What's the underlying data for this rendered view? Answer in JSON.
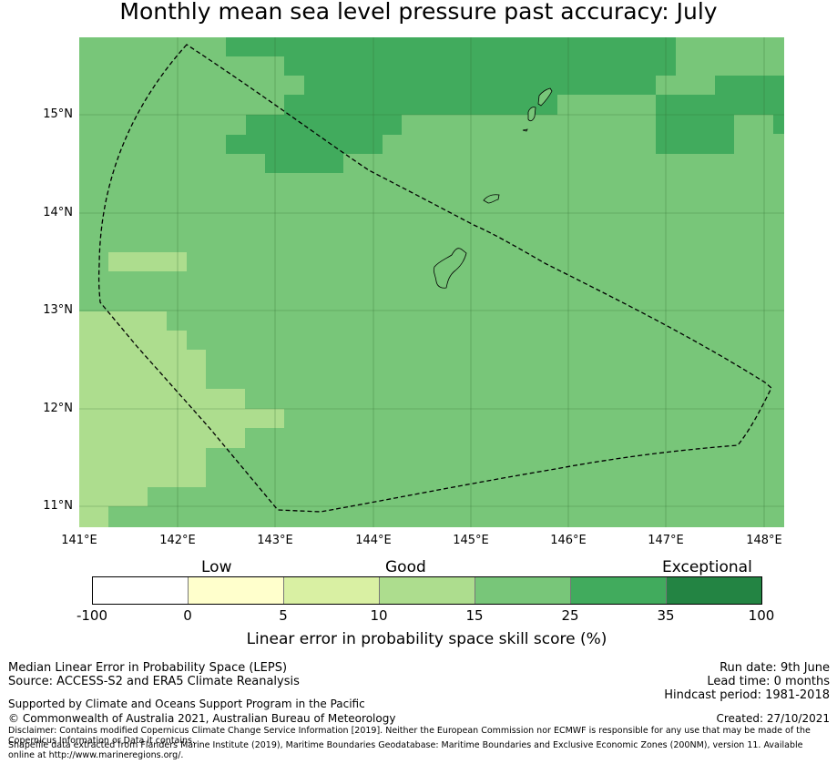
{
  "title": "Monthly mean sea level pressure past accuracy: July",
  "map": {
    "lon_ticks": [
      "141°E",
      "142°E",
      "143°E",
      "144°E",
      "145°E",
      "146°E",
      "147°E",
      "148°E"
    ],
    "lat_ticks": [
      "15°N",
      "14°N",
      "13°N",
      "12°N",
      "11°N"
    ],
    "lon_range": [
      141.0,
      148.2
    ],
    "lat_range": [
      10.8,
      15.8
    ],
    "gridlines": true,
    "boundary_style": "dashed",
    "colors": {
      "5-10": "#d9f0a3",
      "10-15": "#addd8e",
      "15-25": "#78c679",
      "25-35": "#41ab5d"
    }
  },
  "colorbar": {
    "categories": [
      "Low",
      "Good",
      "Exceptional"
    ],
    "ticks": [
      "-100",
      "0",
      "5",
      "10",
      "15",
      "25",
      "35",
      "100"
    ],
    "colors": [
      "#ffffff",
      "#ffffcc",
      "#d9f0a3",
      "#addd8e",
      "#78c679",
      "#41ab5d",
      "#238443"
    ],
    "label": "Linear error in probability space skill score (%)"
  },
  "info": {
    "line1": "Median Linear Error in Probability Space (LEPS)",
    "line2": "Source: ACCESS-S2 and ERA5 Climate Reanalysis",
    "supported": "Supported by Climate and Oceans Support Program in the Pacific",
    "copyright": "© Commonwealth of Australia 2021, Australian Bureau of Meteorology",
    "disclaimer": "Disclaimer: Contains modified Copernicus Climate Change Service Information [2019]. Neither the European Commission nor ECMWF is responsible for any use that may be made of the Copernicus Information or Data it contains.",
    "shapefile": "Shapefile data extracted from Flanders Marine Institute (2019), Maritime Boundaries Geodatabase: Maritime Boundaries and Exclusive Economic Zones (200NM), version 11. Available online at http://www.marineregions.org/."
  },
  "run": {
    "run_date": "Run date: 9th June",
    "lead_time": "Lead time: 0 months",
    "hindcast": "Hindcast period: 1981-2018",
    "created": "Created: 27/10/2021"
  }
}
